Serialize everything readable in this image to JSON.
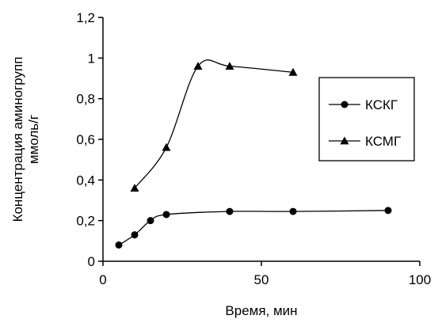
{
  "chart_data": {
    "type": "line",
    "title": "",
    "xlabel": "Время, мин",
    "ylabel": [
      "Концентрация аминогрупп",
      "ммоль/г"
    ],
    "xlim": [
      0,
      100
    ],
    "ylim": [
      0,
      1.2
    ],
    "xticks": [
      {
        "value": 0,
        "label": "0"
      },
      {
        "value": 50,
        "label": "50"
      },
      {
        "value": 100,
        "label": "100"
      }
    ],
    "yticks": [
      {
        "value": 0,
        "label": "0"
      },
      {
        "value": 0.2,
        "label": "0,2"
      },
      {
        "value": 0.4,
        "label": "0,4"
      },
      {
        "value": 0.6,
        "label": "0,6"
      },
      {
        "value": 0.8,
        "label": "0,8"
      },
      {
        "value": 1,
        "label": "1"
      },
      {
        "value": 1.2,
        "label": "1,2"
      }
    ],
    "grid": false,
    "legend_position": "right",
    "series": [
      {
        "name": "КСКГ",
        "marker": "circle",
        "color": "#000000",
        "x": [
          5,
          10,
          15,
          20,
          40,
          60,
          90
        ],
        "y": [
          0.08,
          0.13,
          0.2,
          0.23,
          0.245,
          0.245,
          0.25
        ]
      },
      {
        "name": "КСМГ",
        "marker": "triangle",
        "color": "#000000",
        "x": [
          10,
          20,
          30,
          40,
          60
        ],
        "y": [
          0.36,
          0.56,
          0.96,
          0.96,
          0.93
        ]
      }
    ]
  }
}
